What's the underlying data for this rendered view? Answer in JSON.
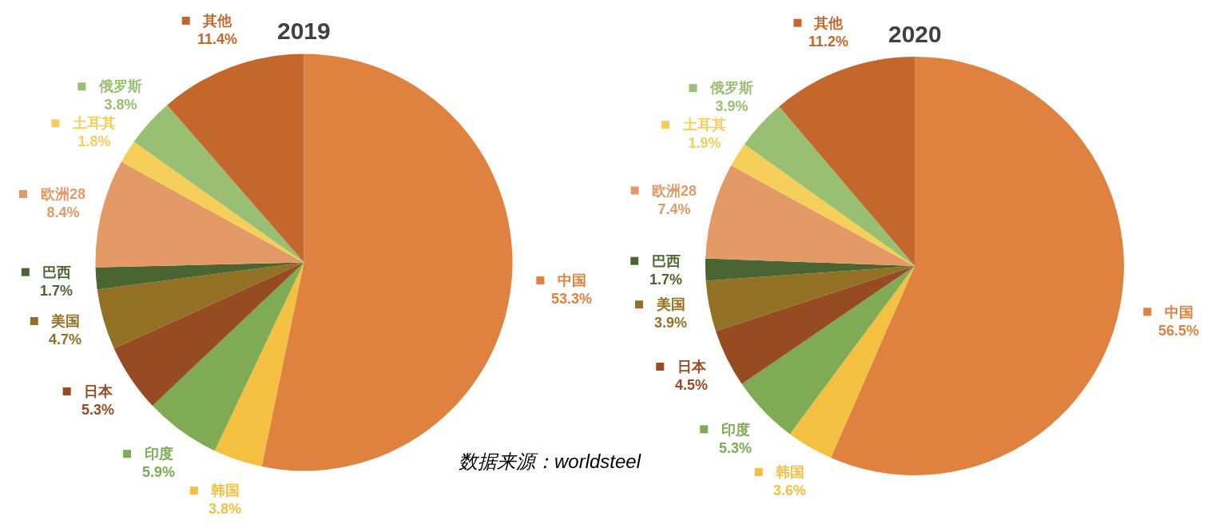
{
  "chart_data": [
    {
      "type": "pie",
      "title": "2019",
      "categories": [
        "中国",
        "韩国",
        "印度",
        "日本",
        "美国",
        "巴西",
        "欧洲28",
        "土耳其",
        "俄罗斯",
        "其他"
      ],
      "values": [
        53.3,
        3.8,
        5.9,
        5.3,
        4.7,
        1.7,
        8.4,
        1.8,
        3.8,
        11.4
      ],
      "value_labels": [
        "53.3%",
        "3.8%",
        "5.9%",
        "5.3%",
        "4.7%",
        "1.7%",
        "8.4%",
        "1.8%",
        "3.8%",
        "11.4%"
      ],
      "colors": [
        "#e0823f",
        "#f4c042",
        "#7fab55",
        "#964b22",
        "#927024",
        "#4a6532",
        "#e39a66",
        "#f6cf5a",
        "#98bf72",
        "#c4672c"
      ],
      "legend": "left",
      "annotations": [
        "数据来源：worldsteel"
      ]
    },
    {
      "type": "pie",
      "title": "2020",
      "categories": [
        "中国",
        "韩国",
        "印度",
        "日本",
        "美国",
        "巴西",
        "欧洲28",
        "土耳其",
        "俄罗斯",
        "其他"
      ],
      "values": [
        56.5,
        3.6,
        5.3,
        4.5,
        3.9,
        1.7,
        7.4,
        1.9,
        3.9,
        11.2
      ],
      "value_labels": [
        "56.5%",
        "3.6%",
        "5.3%",
        "4.5%",
        "3.9%",
        "1.7%",
        "7.4%",
        "1.9%",
        "3.9%",
        "11.2%"
      ],
      "colors": [
        "#e0823f",
        "#f4c042",
        "#7fab55",
        "#964b22",
        "#927024",
        "#4a6532",
        "#e39a66",
        "#f6cf5a",
        "#98bf72",
        "#c4672c"
      ],
      "legend": "left"
    }
  ]
}
